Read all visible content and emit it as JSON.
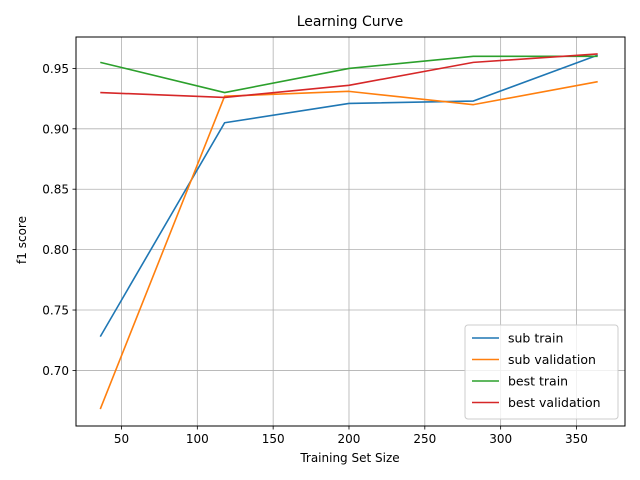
{
  "chart_data": {
    "type": "line",
    "title": "Learning Curve",
    "xlabel": "Training Set Size",
    "ylabel": "f1 score",
    "xlim": [
      20,
      382
    ],
    "ylim": [
      0.654,
      0.976
    ],
    "xticks": [
      50,
      100,
      150,
      200,
      250,
      300,
      350
    ],
    "yticks": [
      0.7,
      0.75,
      0.8,
      0.85,
      0.9,
      0.95
    ],
    "grid": true,
    "legend_position": "lower-right",
    "x": [
      36,
      118,
      200,
      282,
      364
    ],
    "series": [
      {
        "name": "sub train",
        "color": "#1f77b4",
        "values": [
          0.728,
          0.905,
          0.921,
          0.923,
          0.961
        ]
      },
      {
        "name": "sub validation",
        "color": "#ff7f0e",
        "values": [
          0.668,
          0.927,
          0.931,
          0.92,
          0.939
        ]
      },
      {
        "name": "best train",
        "color": "#2ca02c",
        "values": [
          0.955,
          0.93,
          0.95,
          0.96,
          0.96
        ]
      },
      {
        "name": "best validation",
        "color": "#d62728",
        "values": [
          0.93,
          0.926,
          0.936,
          0.955,
          0.962
        ]
      }
    ]
  }
}
